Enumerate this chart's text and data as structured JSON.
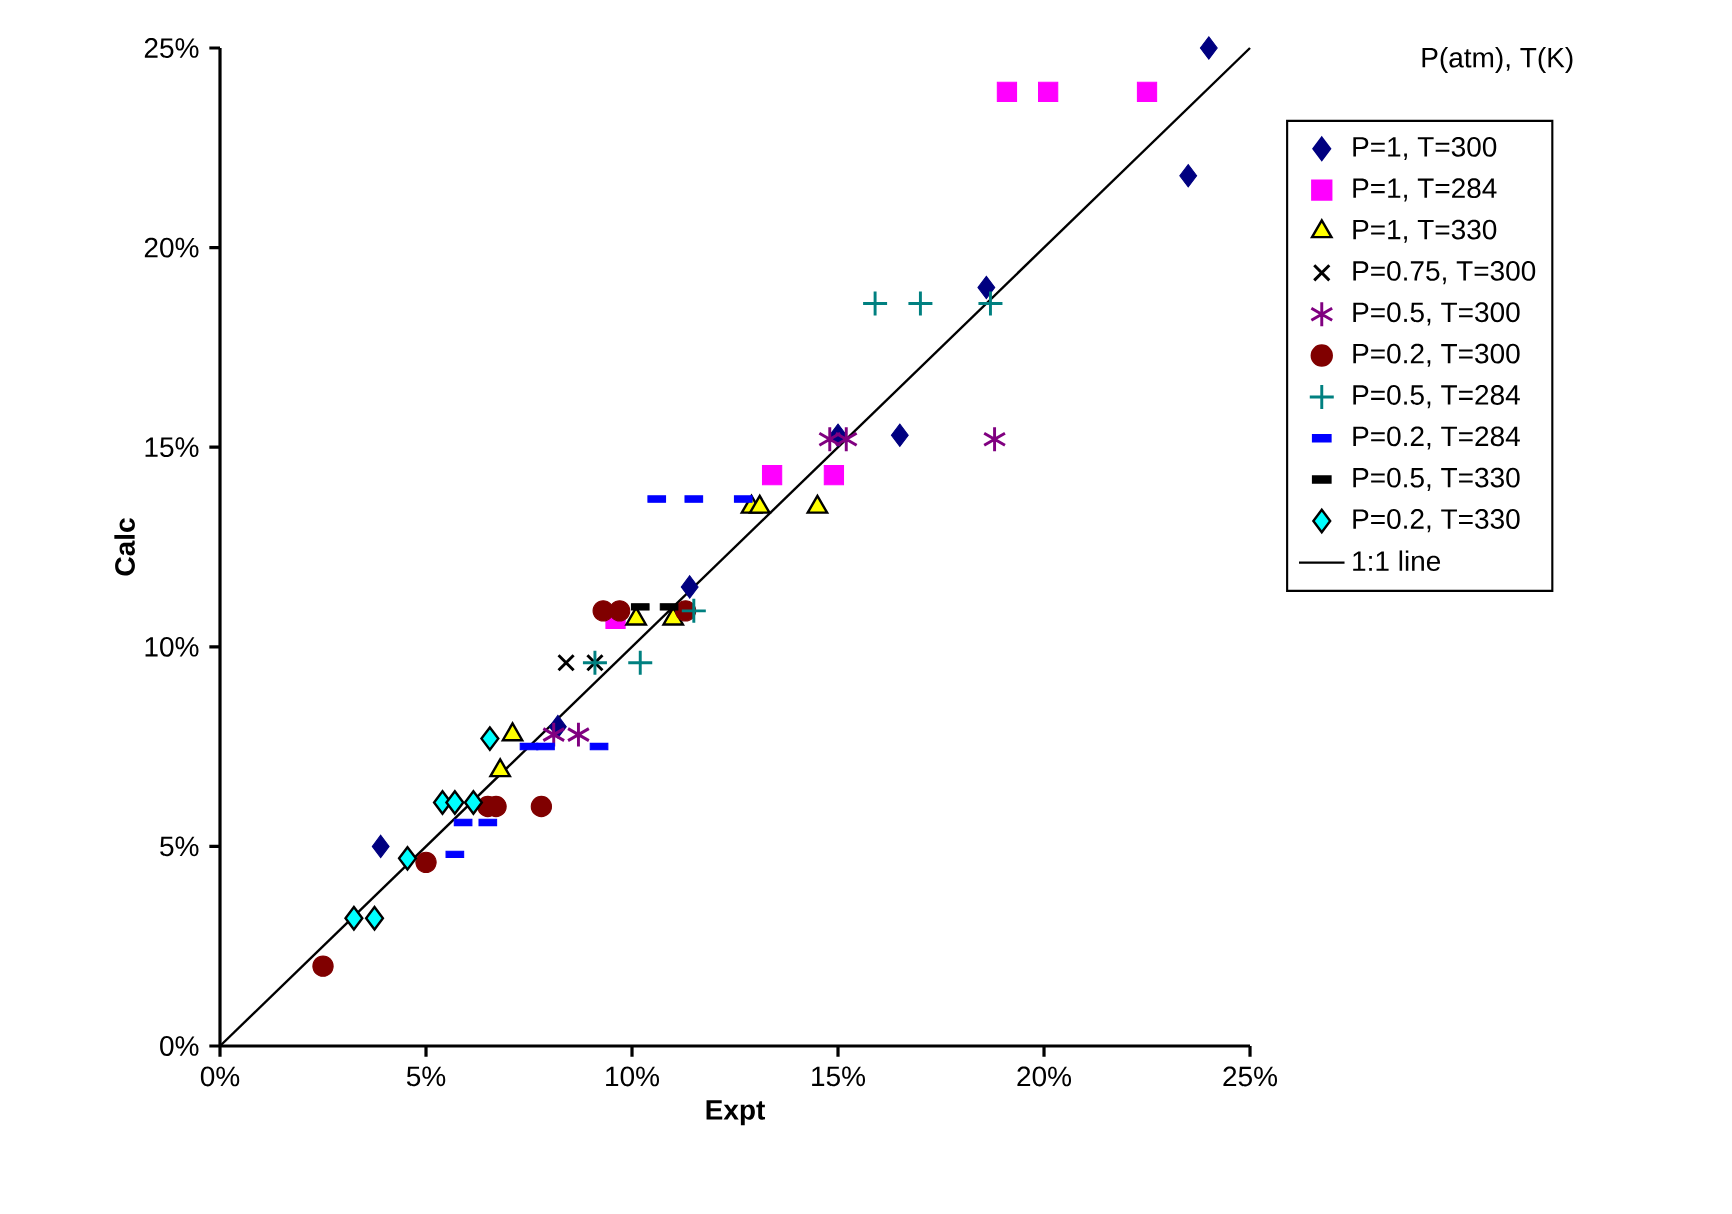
{
  "chart_data": {
    "type": "scatter",
    "xlabel": "Expt",
    "ylabel": "Calc",
    "legend_title": "P(atm), T(K)",
    "legend": "right",
    "grid": false,
    "xlim": [
      0,
      25
    ],
    "ylim": [
      0,
      25
    ],
    "xticks": [
      {
        "value": 0,
        "label": "0%"
      },
      {
        "value": 5,
        "label": "5%"
      },
      {
        "value": 10,
        "label": "10%"
      },
      {
        "value": 15,
        "label": "15%"
      },
      {
        "value": 20,
        "label": "20%"
      },
      {
        "value": 25,
        "label": "25%"
      }
    ],
    "yticks": [
      {
        "value": 0,
        "label": "0%"
      },
      {
        "value": 5,
        "label": "5%"
      },
      {
        "value": 10,
        "label": "10%"
      },
      {
        "value": 15,
        "label": "15%"
      },
      {
        "value": 20,
        "label": "20%"
      },
      {
        "value": 25,
        "label": "25%"
      }
    ],
    "series": [
      {
        "name": "P=1, T=300",
        "color": "#000080",
        "marker": "diamond",
        "x": [
          3.9,
          8.2,
          11.4,
          15.0,
          16.5,
          18.6,
          23.5,
          24.0
        ],
        "values": [
          5.0,
          8.0,
          11.5,
          15.3,
          15.3,
          19.0,
          21.8,
          25.0
        ]
      },
      {
        "name": "P=1, T=284",
        "color": "#ff00ff",
        "marker": "square",
        "x": [
          9.6,
          13.4,
          14.9,
          19.1,
          20.1,
          22.5
        ],
        "values": [
          10.7,
          14.3,
          14.3,
          23.9,
          23.9,
          23.9
        ]
      },
      {
        "name": "P=1, T=330",
        "color": "#ffff00",
        "marker": "triangle",
        "x": [
          6.8,
          7.1,
          10.1,
          11.0,
          12.9,
          13.1,
          14.5
        ],
        "values": [
          6.9,
          7.8,
          10.7,
          10.7,
          13.5,
          13.5,
          13.5
        ]
      },
      {
        "name": "P=0.75, T=300",
        "color": "#000000",
        "marker": "cross",
        "x": [
          8.4,
          9.1
        ],
        "values": [
          9.6,
          9.6
        ]
      },
      {
        "name": "P=0.5, T=300",
        "color": "#800080",
        "x": [
          8.1,
          8.7,
          14.8,
          15.2,
          18.8
        ],
        "values": [
          7.8,
          7.8,
          15.2,
          15.2,
          15.2
        ]
      },
      {
        "name": "P=0.2, T=300",
        "color": "#800000",
        "marker": "circle",
        "x": [
          2.5,
          5.0,
          6.5,
          6.7,
          7.8,
          9.3,
          9.7,
          11.3
        ],
        "values": [
          2.0,
          4.6,
          6.0,
          6.0,
          6.0,
          10.9,
          10.9,
          10.9
        ]
      },
      {
        "name": "P=0.5, T=284",
        "color": "#008080",
        "marker": "plus",
        "x": [
          9.1,
          10.2,
          11.5,
          15.9,
          17.0,
          18.7
        ],
        "values": [
          9.6,
          9.6,
          10.9,
          18.6,
          18.6,
          18.6
        ]
      },
      {
        "name": "P=0.2, T=284",
        "color": "#0000ff",
        "x": [
          5.7,
          5.9,
          6.5,
          7.5,
          7.9,
          9.2,
          10.6,
          11.5,
          12.7
        ],
        "values": [
          4.8,
          5.6,
          5.6,
          7.5,
          7.5,
          7.5,
          13.7,
          13.7,
          13.7
        ]
      },
      {
        "name": "P=0.5, T=330",
        "color": "#000000",
        "x": [
          10.2,
          10.9
        ],
        "values": [
          11.0,
          11.0
        ]
      },
      {
        "name": "P=0.2, T=330",
        "color": "#00ffff",
        "marker": "diamond",
        "x": [
          3.25,
          3.75,
          4.55,
          5.4,
          5.7,
          6.15,
          6.55
        ],
        "values": [
          3.2,
          3.2,
          4.7,
          6.1,
          6.1,
          6.1,
          7.7
        ]
      },
      {
        "name": "1:1 line",
        "type": "line",
        "color": "#000000",
        "marker": "none",
        "line_style": "solid",
        "x": [
          0,
          25
        ],
        "values": [
          0,
          25
        ]
      }
    ]
  }
}
